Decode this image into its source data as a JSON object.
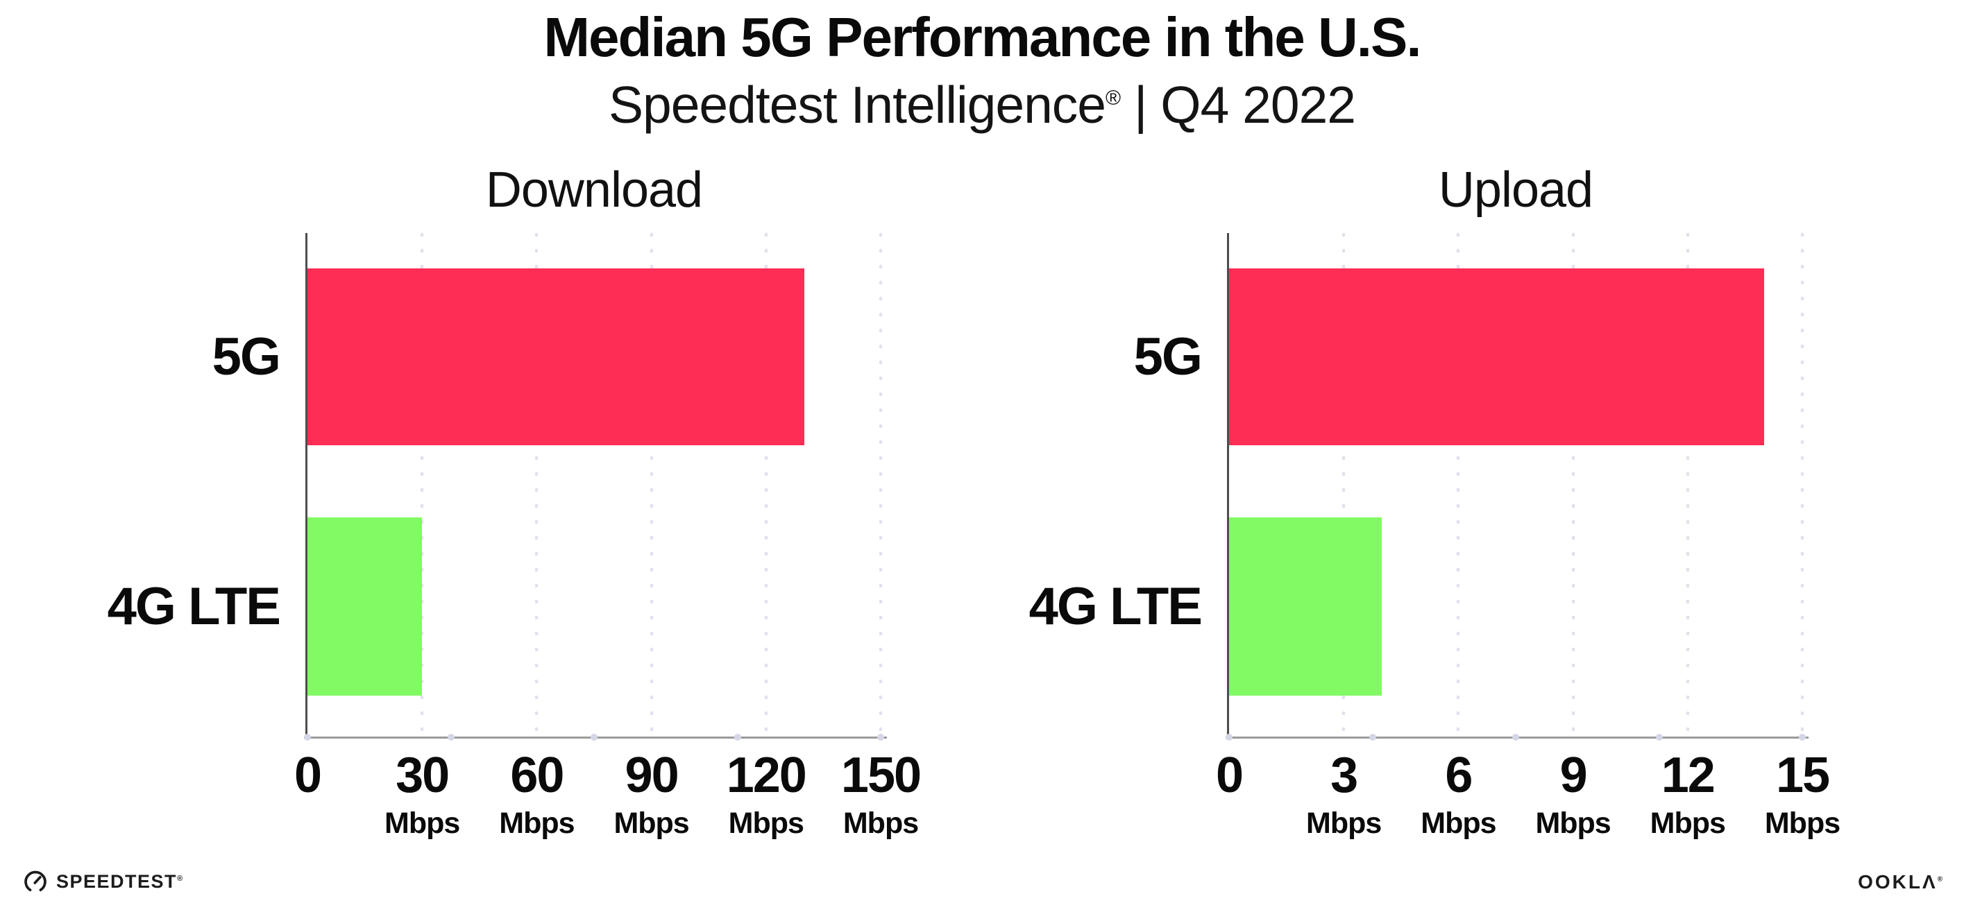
{
  "header": {
    "title": "Median 5G Performance in the U.S.",
    "subtitle": {
      "brand": "Speedtest Intelligence",
      "reg": "®",
      "rest": " | Q4 2022"
    }
  },
  "charts": [
    {
      "title": "Download",
      "xmax": 150,
      "ticks": [
        {
          "value": 0,
          "label": "0",
          "unit": ""
        },
        {
          "value": 30,
          "label": "30",
          "unit": "Mbps"
        },
        {
          "value": 60,
          "label": "60",
          "unit": "Mbps"
        },
        {
          "value": 90,
          "label": "90",
          "unit": "Mbps"
        },
        {
          "value": 120,
          "label": "120",
          "unit": "Mbps"
        },
        {
          "value": 150,
          "label": "150",
          "unit": "Mbps"
        }
      ],
      "bars": [
        {
          "label": "5G",
          "value": 130,
          "color": "#fd2d55"
        },
        {
          "label": "4G LTE",
          "value": 30,
          "color": "#81fa63"
        }
      ]
    },
    {
      "title": "Upload",
      "xmax": 15,
      "ticks": [
        {
          "value": 0,
          "label": "0",
          "unit": ""
        },
        {
          "value": 3,
          "label": "3",
          "unit": "Mbps"
        },
        {
          "value": 6,
          "label": "6",
          "unit": "Mbps"
        },
        {
          "value": 9,
          "label": "9",
          "unit": "Mbps"
        },
        {
          "value": 12,
          "label": "12",
          "unit": "Mbps"
        },
        {
          "value": 15,
          "label": "15",
          "unit": "Mbps"
        }
      ],
      "bars": [
        {
          "label": "5G",
          "value": 14,
          "color": "#fd2d55"
        },
        {
          "label": "4G LTE",
          "value": 4,
          "color": "#81fa63"
        }
      ]
    }
  ],
  "footer": {
    "speedtest": "SPEEDTEST",
    "speedtest_reg": "®",
    "ookla": "OOKLΛ",
    "ookla_reg": "®"
  },
  "colors": {
    "bar_5g": "#fd2d55",
    "bar_4g_lte": "#81fa63",
    "gridline": "#e0e1ec",
    "axis_x": "#9b9b9b",
    "axis_y": "#4d4d4d",
    "axis_quarter_dot": "#d5d6e6",
    "text": "#0d0d0d"
  },
  "chart_data": {
    "type": "bar",
    "orientation": "horizontal",
    "title": "Median 5G Performance in the U.S.",
    "subtitle": "Speedtest Intelligence® | Q4 2022",
    "unit": "Mbps",
    "categories": [
      "5G",
      "4G LTE"
    ],
    "series_colors": {
      "5G": "#fd2d55",
      "4G LTE": "#81fa63"
    },
    "panels": [
      {
        "title": "Download",
        "values": [
          130,
          30
        ],
        "xlim": [
          0,
          150
        ],
        "xticks": [
          0,
          30,
          60,
          90,
          120,
          150
        ]
      },
      {
        "title": "Upload",
        "values": [
          14,
          4
        ],
        "xlim": [
          0,
          15
        ],
        "xticks": [
          0,
          3,
          6,
          9,
          12,
          15
        ]
      }
    ],
    "grid": "vertical dotted gridlines at each tick",
    "legend_position": "none"
  }
}
